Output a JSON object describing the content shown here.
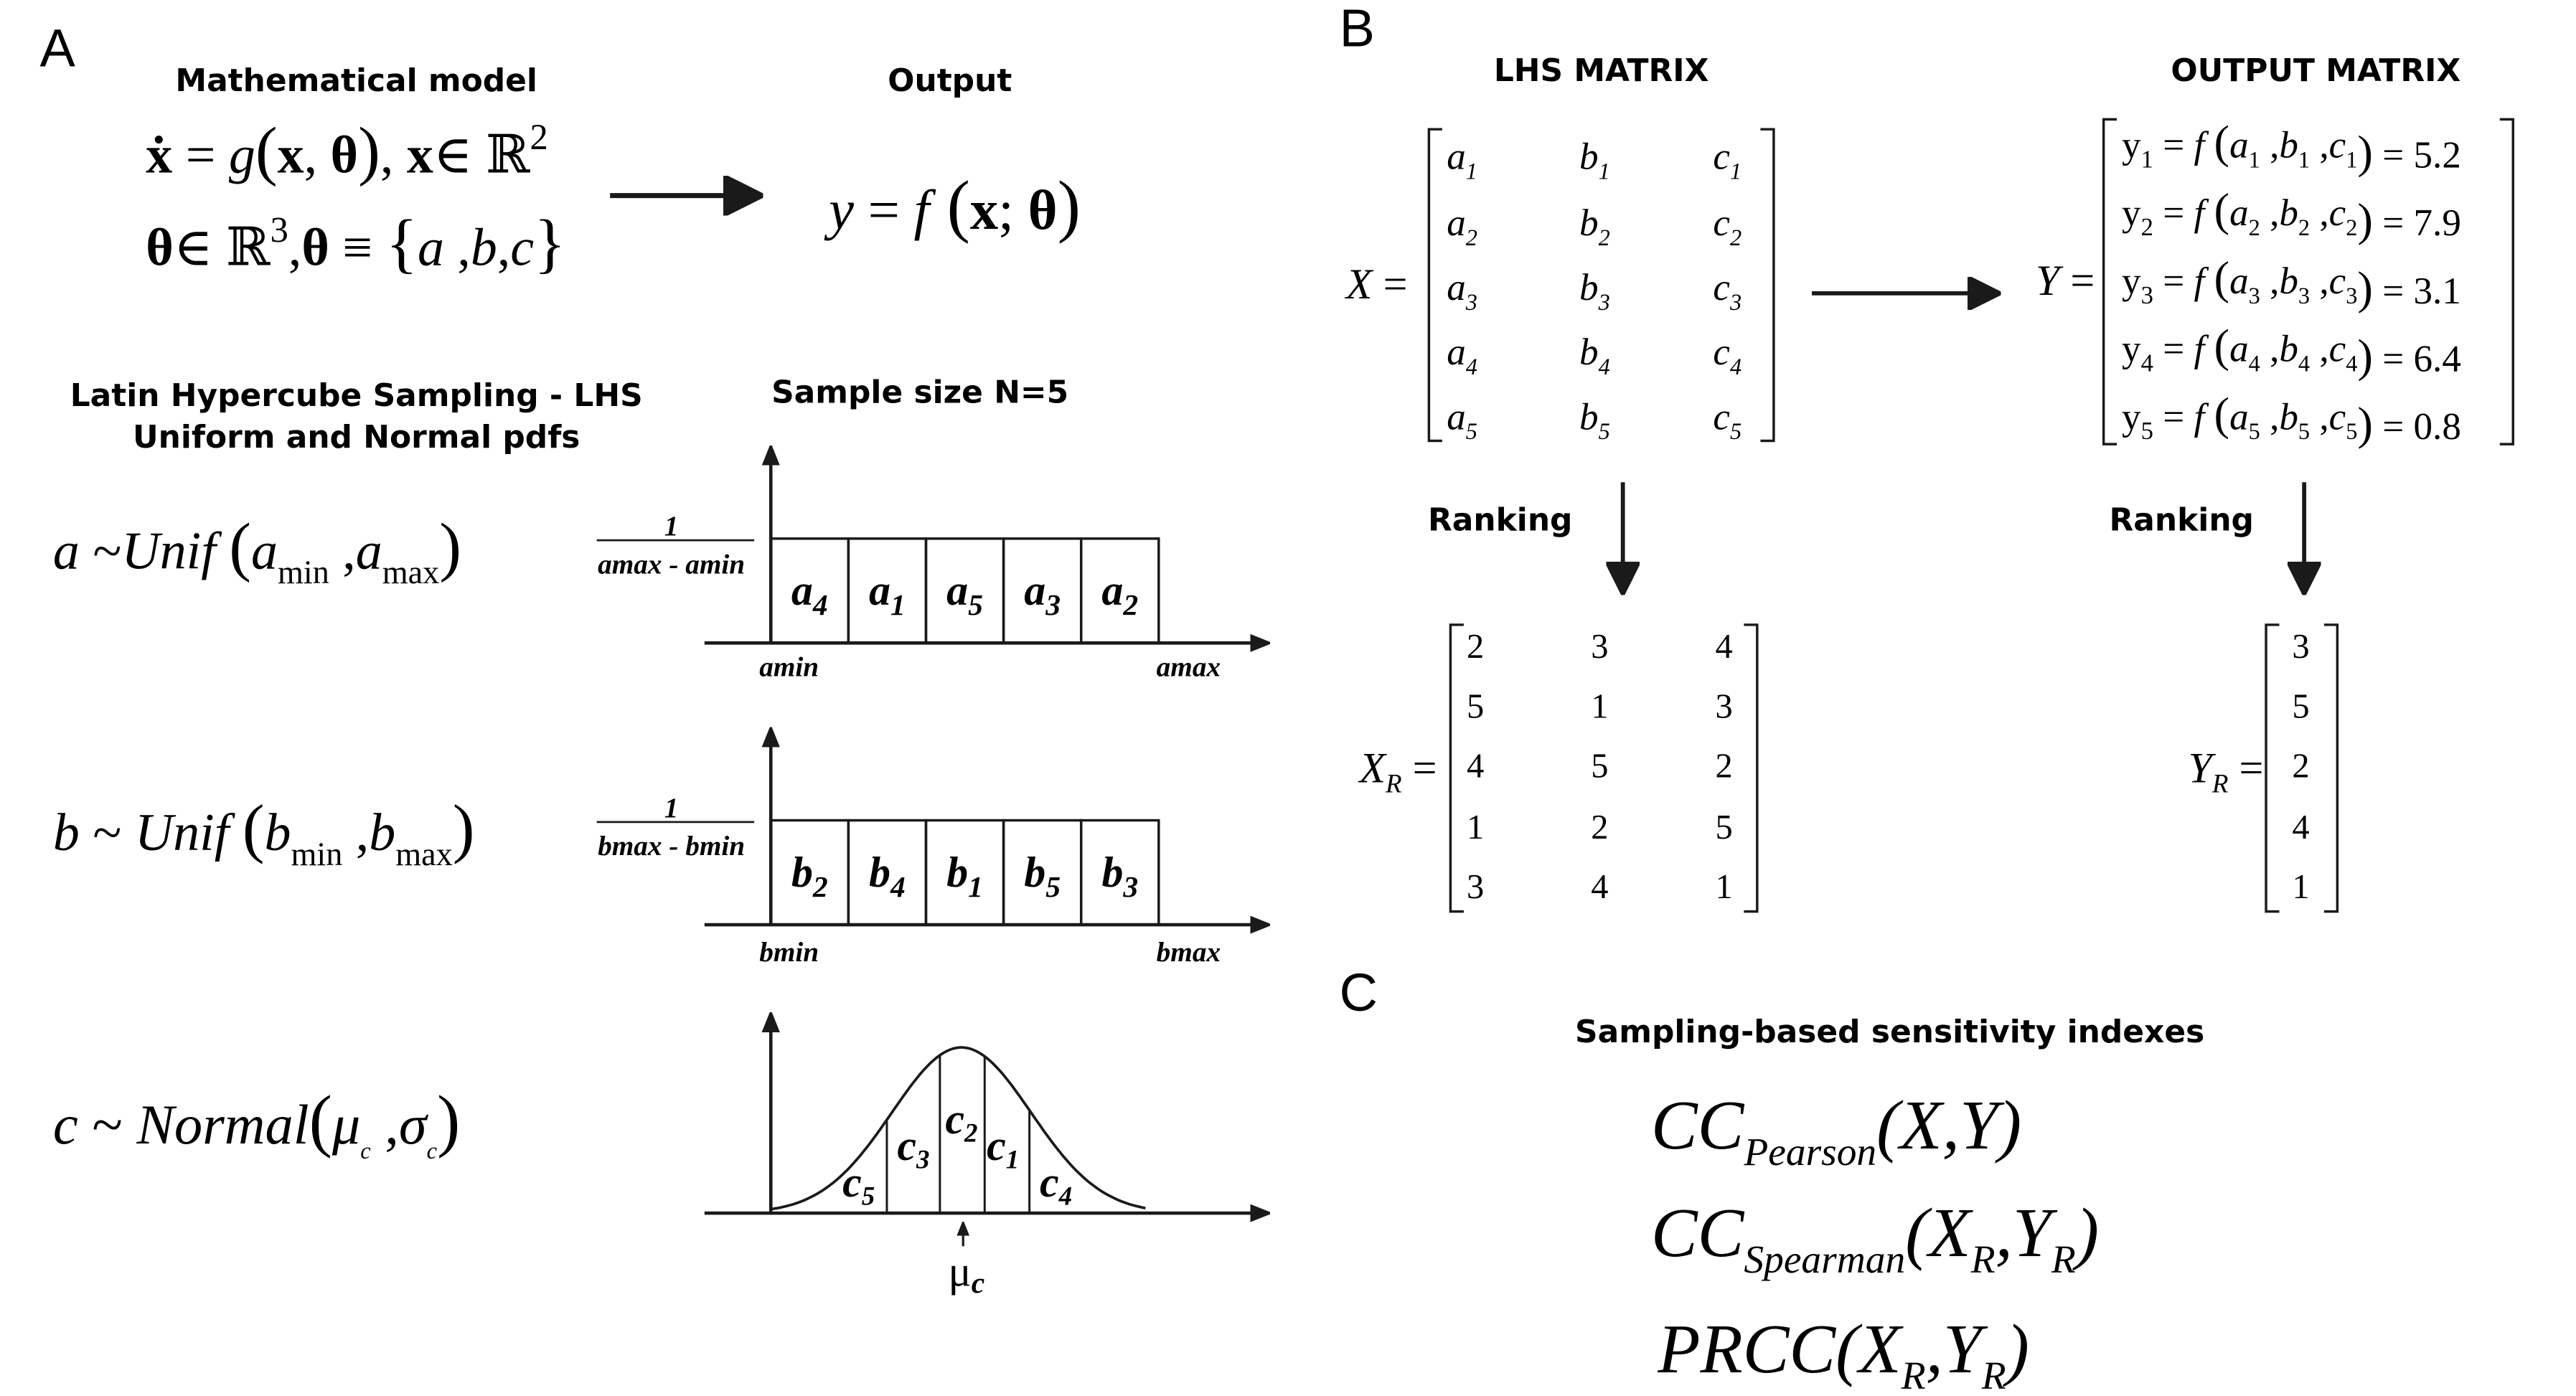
{
  "panels": {
    "a": "A",
    "b": "B",
    "c": "C"
  },
  "panel_a": {
    "model_heading": "Mathematical model",
    "output_heading": "Output",
    "model_line1": "ẋ = g(x, θ), x∈ℝ²",
    "model_line2": "θ∈ℝ³, θ ≡ {a,b,c}",
    "output_eq": "y = f(x; θ)",
    "lhs_title": "Latin Hypercube Sampling - LHS",
    "lhs_subtitle": "Uniform and Normal pdfs",
    "sample_size": "Sample size N=5",
    "dist_a": "a ~Unif (amin , amax)",
    "dist_b": "b ~ Unif (bmin , bmax)",
    "dist_c": "c ~ Normal (μc , σc)",
    "density_a_num": "1",
    "density_a_den": "amax - amin",
    "density_b_num": "1",
    "density_b_den": "bmax - bmin",
    "a_blocks": [
      "a4",
      "a1",
      "a5",
      "a3",
      "a2"
    ],
    "b_blocks": [
      "b2",
      "b4",
      "b1",
      "b5",
      "b3"
    ],
    "c_blocks": [
      "c5",
      "c3",
      "c2",
      "c1",
      "c4"
    ],
    "a_min": "amin",
    "a_max": "amax",
    "b_min": "bmin",
    "b_max": "bmax",
    "mu_label": "μc"
  },
  "panel_b": {
    "lhs_heading": "LHS MATRIX",
    "out_heading": "OUTPUT MATRIX",
    "x_label": "X =",
    "y_label": "Y =",
    "xr_label": "XR =",
    "yr_label": "YR =",
    "lhs_matrix": [
      [
        "a1",
        "b1",
        "c1"
      ],
      [
        "a2",
        "b2",
        "c2"
      ],
      [
        "a3",
        "b3",
        "c3"
      ],
      [
        "a4",
        "b4",
        "c4"
      ],
      [
        "a5",
        "b5",
        "c5"
      ]
    ],
    "output_rows": [
      {
        "lhs": "y1",
        "args": "a1 ,b1 ,c1",
        "value": "5.2"
      },
      {
        "lhs": "y2",
        "args": "a2 ,b2 ,c2",
        "value": "7.9"
      },
      {
        "lhs": "y3",
        "args": "a3 ,b3 ,c3",
        "value": "3.1"
      },
      {
        "lhs": "y4",
        "args": "a4 ,b4 ,c4",
        "value": "6.4"
      },
      {
        "lhs": "y5",
        "args": "a5 ,b5 ,c5",
        "value": "0.8"
      }
    ],
    "ranking_left": "Ranking",
    "ranking_right": "Ranking",
    "xr_matrix": [
      [
        "2",
        "3",
        "4"
      ],
      [
        "5",
        "1",
        "3"
      ],
      [
        "4",
        "5",
        "2"
      ],
      [
        "1",
        "2",
        "5"
      ],
      [
        "3",
        "4",
        "1"
      ]
    ],
    "yr_vector": [
      "3",
      "5",
      "2",
      "4",
      "1"
    ]
  },
  "panel_c": {
    "title": "Sampling-based sensitivity indexes",
    "index1": "CCPearson(X,Y)",
    "index2": "CCSpearman(XR,YR)",
    "index3": "PRCC(XR,YR)"
  }
}
